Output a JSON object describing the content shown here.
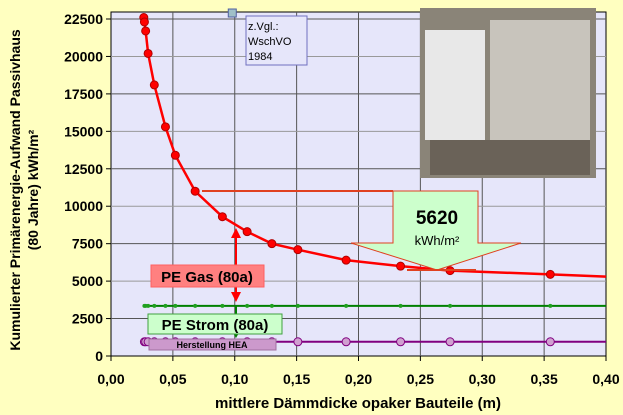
{
  "chart_data": {
    "type": "line",
    "xlabel": "mittlere Dämmdicke opaker Bauteile (m)",
    "ylabel_line1": "Kumulierter Primärenergie-Aufwand Passivhaus",
    "ylabel_line2": "(80 Jahre)  kWh/m²",
    "xlim": [
      0,
      0.4
    ],
    "ylim": [
      0,
      22500
    ],
    "xticks": [
      0,
      0.05,
      0.1,
      0.15,
      0.2,
      0.25,
      0.3,
      0.35,
      0.4
    ],
    "xtick_labels": [
      "0,00",
      "0,05",
      "0,10",
      "0,15",
      "0,20",
      "0,25",
      "0,30",
      "0,35",
      "0,40"
    ],
    "yticks": [
      0,
      2500,
      5000,
      7500,
      10000,
      12500,
      15000,
      17500,
      20000,
      22500
    ],
    "ytick_labels": [
      "0",
      "2500",
      "5000",
      "7500",
      "10000",
      "12500",
      "15000",
      "17500",
      "20000",
      "22500"
    ],
    "grid": true,
    "series": [
      {
        "name": "PE Gas (80a)",
        "color": "#ff0000",
        "x": [
          0.0265,
          0.027,
          0.028,
          0.03,
          0.035,
          0.044,
          0.052,
          0.068,
          0.09,
          0.11,
          0.13,
          0.151,
          0.19,
          0.234,
          0.274,
          0.355,
          0.4
        ],
        "y": [
          22600,
          22300,
          21700,
          20200,
          18100,
          15300,
          13400,
          11000,
          9300,
          8300,
          7500,
          7100,
          6400,
          6000,
          5700,
          5450,
          5300
        ]
      },
      {
        "name": "PE Strom (80a)",
        "color": "#008000",
        "x": [
          0.027,
          0.028,
          0.03,
          0.035,
          0.044,
          0.052,
          0.068,
          0.09,
          0.11,
          0.13,
          0.151,
          0.19,
          0.234,
          0.274,
          0.355,
          0.4
        ],
        "y": [
          3350,
          3350,
          3350,
          3350,
          3350,
          3350,
          3350,
          3350,
          3350,
          3350,
          3350,
          3350,
          3350,
          3350,
          3350,
          3350
        ]
      },
      {
        "name": "Herstellung HEA",
        "color": "#800080",
        "x": [
          0.027,
          0.028,
          0.03,
          0.035,
          0.044,
          0.052,
          0.068,
          0.09,
          0.11,
          0.13,
          0.151,
          0.19,
          0.234,
          0.274,
          0.355,
          0.4
        ],
        "y": [
          950,
          950,
          950,
          950,
          950,
          950,
          950,
          950,
          950,
          950,
          950,
          950,
          950,
          950,
          950,
          950
        ]
      }
    ],
    "reference_point": {
      "x": 0.098,
      "y": 22900,
      "label_lines": [
        "z.Vgl.:",
        "WschVO",
        "1984"
      ]
    },
    "annotations": {
      "value": "5620",
      "unit": "kWh/m²",
      "gas_label": "PE Gas (80a)",
      "strom_label": "PE Strom (80a)",
      "hea_label": "Herstellung HEA"
    }
  }
}
